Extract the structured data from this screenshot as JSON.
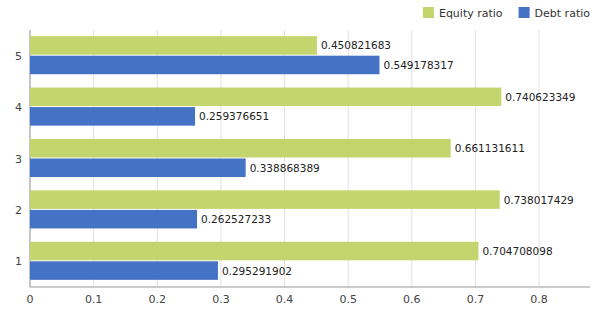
{
  "chart_data": {
    "type": "bar",
    "orientation": "horizontal",
    "categories": [
      "1",
      "2",
      "3",
      "4",
      "5"
    ],
    "series": [
      {
        "name": "Equity ratio",
        "color": "#c4d56e",
        "values": [
          0.704708098,
          0.738017429,
          0.661131611,
          0.740623349,
          0.450821683
        ]
      },
      {
        "name": "Debt ratio",
        "color": "#4472c4",
        "values": [
          0.295291902,
          0.262527233,
          0.338868389,
          0.259376651,
          0.549178317
        ]
      }
    ],
    "xlim": [
      0,
      0.88
    ],
    "xticks": [
      0,
      0.1,
      0.2,
      0.3,
      0.4,
      0.5,
      0.6,
      0.7,
      0.8
    ],
    "grid": true,
    "legend": "upper right",
    "data_labels": true
  }
}
